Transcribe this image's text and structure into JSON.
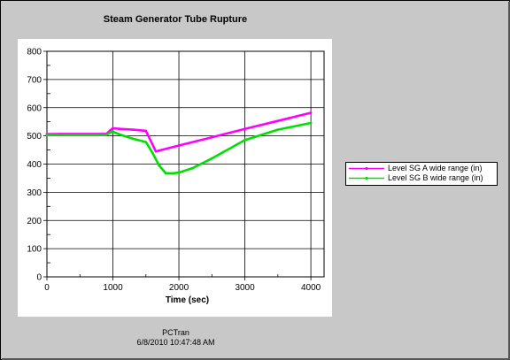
{
  "window": {
    "footer_line1": "PCTran",
    "footer_line2": "6/8/2010 10:47:48 AM"
  },
  "chart_data": {
    "type": "line",
    "title": "Steam Generator Tube Rupture",
    "xlabel": "Time (sec)",
    "ylabel": "",
    "xlim": [
      0,
      4200
    ],
    "ylim": [
      0,
      800
    ],
    "xticks": [
      0,
      1000,
      2000,
      3000,
      4000
    ],
    "yticks": [
      0,
      100,
      200,
      300,
      400,
      500,
      600,
      700,
      800
    ],
    "grid": true,
    "legend_position": "right",
    "series": [
      {
        "name": "Level SG A wide range (in)",
        "color": "#ff00ff",
        "x": [
          0,
          200,
          900,
          960,
          1000,
          1100,
          1300,
          1500,
          1520,
          1650,
          1700,
          2000,
          2500,
          3000,
          3500,
          4000
        ],
        "y": [
          506,
          507,
          507,
          520,
          527,
          525,
          522,
          518,
          508,
          445,
          448,
          466,
          495,
          525,
          553,
          582
        ]
      },
      {
        "name": "Level SG B wide range (in)",
        "color": "#00e000",
        "x": [
          0,
          200,
          900,
          960,
          1000,
          1100,
          1300,
          1500,
          1600,
          1700,
          1800,
          1900,
          2000,
          2200,
          2500,
          3000,
          3500,
          4000
        ],
        "y": [
          503,
          503,
          503,
          512,
          515,
          505,
          490,
          478,
          440,
          395,
          368,
          367,
          370,
          385,
          420,
          485,
          522,
          546
        ]
      }
    ]
  }
}
